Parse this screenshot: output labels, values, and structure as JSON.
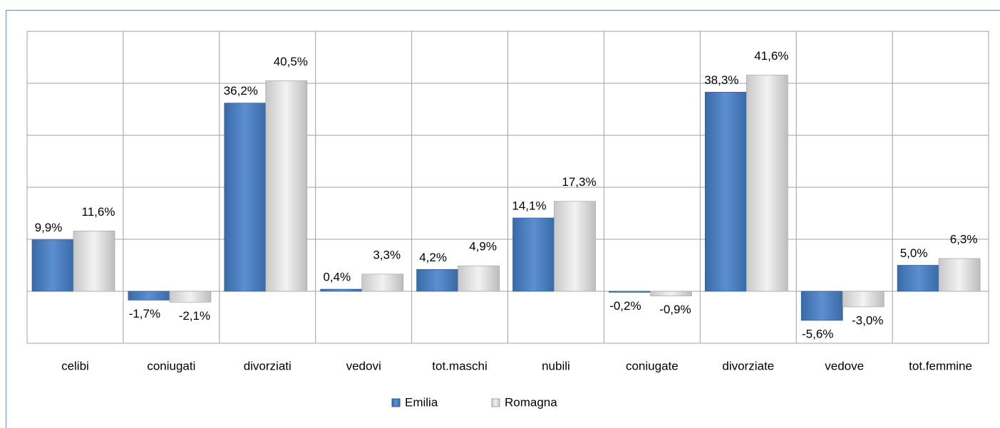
{
  "chart_data": {
    "type": "bar",
    "categories": [
      "celibi",
      "coniugati",
      "divorziati",
      "vedovi",
      "tot.maschi",
      "nubili",
      "coniugate",
      "divorziate",
      "vedove",
      "tot.femmine"
    ],
    "series": [
      {
        "name": "Emilia",
        "color": "#4f81bd",
        "values": [
          9.9,
          -1.7,
          36.2,
          0.4,
          4.2,
          14.1,
          -0.2,
          38.3,
          -5.6,
          5.0
        ],
        "value_labels": [
          "9,9%",
          "-1,7%",
          "36,2%",
          "0,4%",
          "4,2%",
          "14,1%",
          "-0,2%",
          "38,3%",
          "-5,6%",
          "5,0%"
        ]
      },
      {
        "name": "Romagna",
        "color": "#d9d9d9",
        "values": [
          11.6,
          -2.1,
          40.5,
          3.3,
          4.9,
          17.3,
          -0.9,
          41.6,
          -3.0,
          6.3
        ],
        "value_labels": [
          "11,6%",
          "-2,1%",
          "40,5%",
          "3,3%",
          "4,9%",
          "17,3%",
          "-0,9%",
          "41,6%",
          "-3,0%",
          "6,3%"
        ]
      }
    ],
    "ylim": [
      -10,
      50
    ],
    "yticks": [
      -10,
      0,
      10,
      20,
      30,
      40,
      50
    ],
    "grid": true,
    "legend": "bottom"
  }
}
